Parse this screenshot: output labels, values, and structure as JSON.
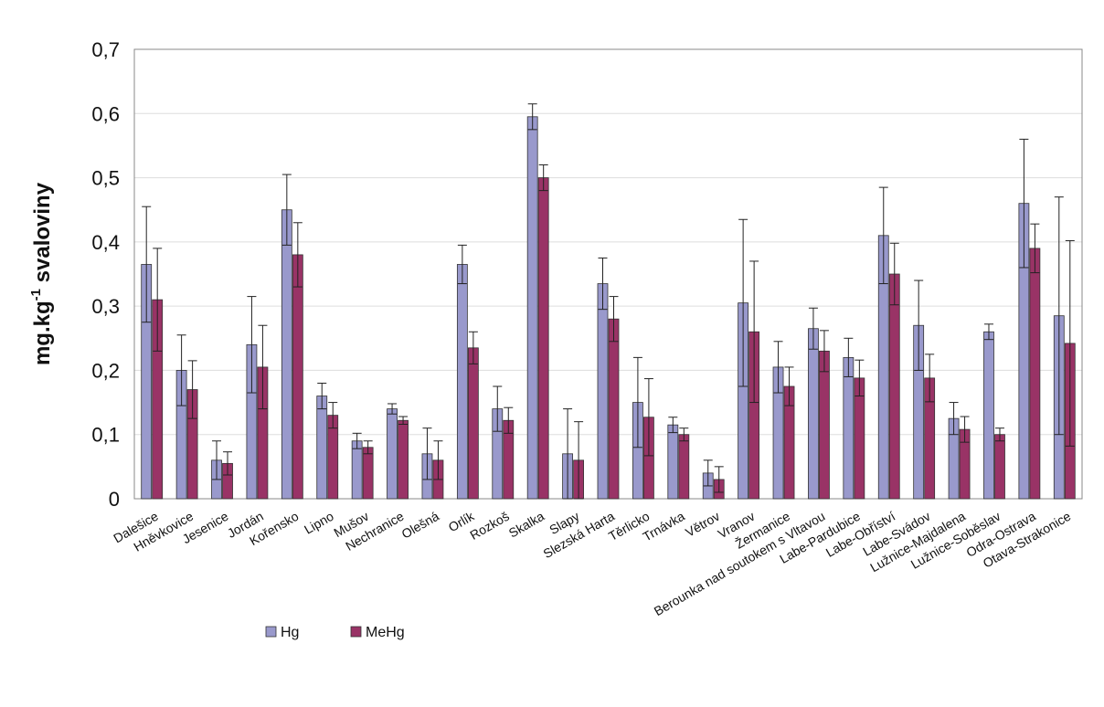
{
  "chart_data": {
    "type": "bar",
    "ylabel_main": "mg.kg",
    "ylabel_sup": "-1",
    "ylabel_rest": " svaloviny",
    "ylim": [
      0,
      0.7
    ],
    "yticks": [
      "0",
      "0,1",
      "0,2",
      "0,3",
      "0,4",
      "0,5",
      "0,6",
      "0,7"
    ],
    "grid": true,
    "legend_position": "bottom-left",
    "colors": {
      "Hg": "#9999cc",
      "MeHg": "#993366"
    },
    "categories": [
      "Dalešice",
      "Hněvkovice",
      "Jesenice",
      "Jordán",
      "Kořensko",
      "Lipno",
      "Mušov",
      "Nechranice",
      "Olešná",
      "Orlík",
      "Rozkoš",
      "Skalka",
      "Slapy",
      "Slezská Harta",
      "Těrlicko",
      "Trnávka",
      "Větrov",
      "Vranov",
      "Žermanice",
      "Berounka nad soutokem s Vltavou",
      "Labe-Pardubice",
      "Labe-Obříství",
      "Labe-Svádov",
      "Lužnice-Majdalena",
      "Lužnice-Soběslav",
      "Odra-Ostrava",
      "Otava-Strakonice"
    ],
    "series": [
      {
        "name": "Hg",
        "values": [
          0.365,
          0.2,
          0.06,
          0.24,
          0.45,
          0.16,
          0.09,
          0.14,
          0.07,
          0.365,
          0.14,
          0.595,
          0.07,
          0.335,
          0.15,
          0.115,
          0.04,
          0.305,
          0.205,
          0.265,
          0.22,
          0.41,
          0.27,
          0.125,
          0.26,
          0.46,
          0.285
        ],
        "errors": [
          0.09,
          0.055,
          0.03,
          0.075,
          0.055,
          0.02,
          0.012,
          0.008,
          0.04,
          0.03,
          0.035,
          0.02,
          0.07,
          0.04,
          0.07,
          0.012,
          0.02,
          0.13,
          0.04,
          0.032,
          0.03,
          0.075,
          0.07,
          0.025,
          0.012,
          0.1,
          0.185
        ]
      },
      {
        "name": "MeHg",
        "values": [
          0.31,
          0.17,
          0.055,
          0.205,
          0.38,
          0.13,
          0.08,
          0.122,
          0.06,
          0.235,
          0.122,
          0.5,
          0.06,
          0.28,
          0.127,
          0.1,
          0.03,
          0.26,
          0.175,
          0.23,
          0.188,
          0.35,
          0.188,
          0.108,
          0.1,
          0.39,
          0.242
        ]
      }
    ],
    "mehg_errors": [
      0.08,
      0.045,
      0.018,
      0.065,
      0.05,
      0.02,
      0.01,
      0.006,
      0.03,
      0.025,
      0.02,
      0.02,
      0.06,
      0.035,
      0.06,
      0.01,
      0.02,
      0.11,
      0.03,
      0.032,
      0.028,
      0.048,
      0.037,
      0.02,
      0.01,
      0.038,
      0.16
    ]
  },
  "legend": {
    "hg_label": "Hg",
    "mehg_label": "MeHg"
  }
}
